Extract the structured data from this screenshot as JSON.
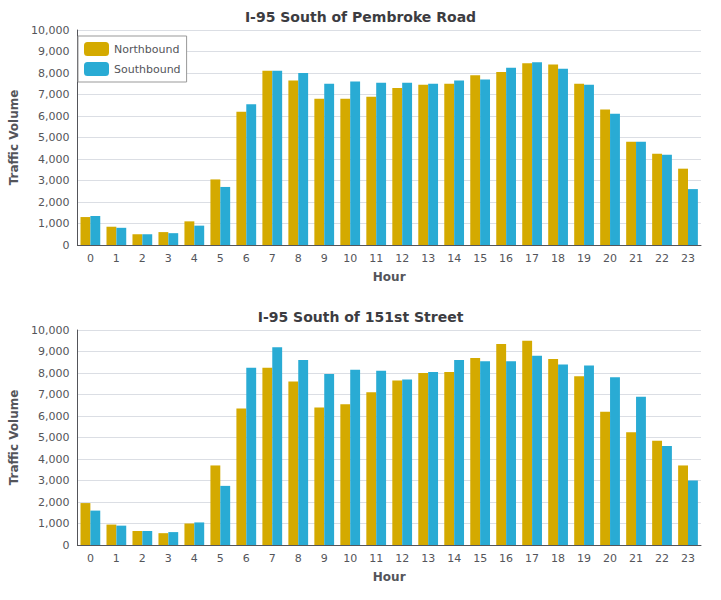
{
  "chart_data": [
    {
      "type": "bar",
      "title": "I-95 South of Pembroke Road",
      "categories": [
        "0",
        "1",
        "2",
        "3",
        "4",
        "5",
        "6",
        "7",
        "8",
        "9",
        "10",
        "11",
        "12",
        "13",
        "14",
        "15",
        "16",
        "17",
        "18",
        "19",
        "20",
        "21",
        "22",
        "23"
      ],
      "series": [
        {
          "name": "Northbound",
          "color": "#D4AA00",
          "values": [
            1300,
            850,
            500,
            600,
            1100,
            3050,
            6200,
            8100,
            7650,
            6800,
            6800,
            6900,
            7300,
            7450,
            7500,
            7900,
            8050,
            8450,
            8400,
            7500,
            6300,
            4800,
            4250,
            3550
          ]
        },
        {
          "name": "Southbound",
          "color": "#29ABD4",
          "values": [
            1350,
            800,
            500,
            550,
            900,
            2700,
            6550,
            8100,
            8000,
            7500,
            7600,
            7550,
            7550,
            7500,
            7650,
            7700,
            8250,
            8500,
            8200,
            7450,
            6100,
            4800,
            4200,
            2600
          ]
        }
      ],
      "xlabel": "Hour",
      "ylabel": "Traffic Volume",
      "ylim": [
        0,
        10000
      ],
      "yticks": [
        0,
        {
          "value": 1000,
          "label": "1,000"
        },
        {
          "value": 2000,
          "label": "2,000"
        },
        {
          "value": 3000,
          "label": "3,000"
        },
        {
          "value": 4000,
          "label": "4,000"
        },
        {
          "value": 5000,
          "label": "5,000"
        },
        {
          "value": 6000,
          "label": "6,000"
        },
        {
          "value": 7000,
          "label": "7,000"
        },
        {
          "value": 8000,
          "label": "8,000"
        },
        {
          "value": 9000,
          "label": "9,000"
        },
        {
          "value": 10000,
          "label": "10,000"
        }
      ],
      "grid": true,
      "legend": "upper left"
    },
    {
      "type": "bar",
      "title": "I-95 South of 151st Street",
      "categories": [
        "0",
        "1",
        "2",
        "3",
        "4",
        "5",
        "6",
        "7",
        "8",
        "9",
        "10",
        "11",
        "12",
        "13",
        "14",
        "15",
        "16",
        "17",
        "18",
        "19",
        "20",
        "21",
        "22",
        "23"
      ],
      "series": [
        {
          "name": "Northbound",
          "color": "#D4AA00",
          "values": [
            1950,
            950,
            650,
            550,
            1000,
            3700,
            6350,
            8250,
            7600,
            6400,
            6550,
            7100,
            7650,
            8000,
            8050,
            8700,
            9350,
            9500,
            8650,
            7850,
            6200,
            5250,
            4850,
            3700
          ]
        },
        {
          "name": "Southbound",
          "color": "#29ABD4",
          "values": [
            1600,
            900,
            650,
            600,
            1050,
            2750,
            8250,
            9200,
            8600,
            7950,
            8150,
            8100,
            7700,
            8050,
            8600,
            8550,
            8550,
            8800,
            8400,
            8350,
            7800,
            6900,
            4600,
            3000
          ]
        }
      ],
      "xlabel": "Hour",
      "ylabel": "Traffic Volume",
      "ylim": [
        0,
        10000
      ],
      "yticks": [
        0,
        {
          "value": 1000,
          "label": "1,000"
        },
        {
          "value": 2000,
          "label": "2,000"
        },
        {
          "value": 3000,
          "label": "3,000"
        },
        {
          "value": 4000,
          "label": "4,000"
        },
        {
          "value": 5000,
          "label": "5,000"
        },
        {
          "value": 6000,
          "label": "6,000"
        },
        {
          "value": 7000,
          "label": "7,000"
        },
        {
          "value": 8000,
          "label": "8,000"
        },
        {
          "value": 9000,
          "label": "9,000"
        },
        {
          "value": 10000,
          "label": "10,000"
        }
      ],
      "grid": true,
      "legend": false
    }
  ]
}
